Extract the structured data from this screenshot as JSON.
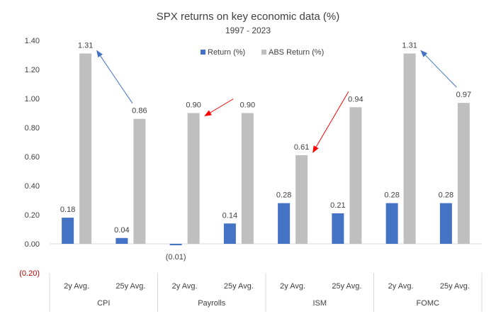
{
  "chart_data": {
    "type": "bar",
    "title": "SPX returns on key economic data (%)",
    "subtitle": "1997 - 2023",
    "xlabel": "",
    "ylabel": "",
    "ylim": [
      -0.2,
      1.4
    ],
    "yticks": [
      {
        "value": 1.4,
        "label": "1.40"
      },
      {
        "value": 1.2,
        "label": "1.20"
      },
      {
        "value": 1.0,
        "label": "1.00"
      },
      {
        "value": 0.8,
        "label": "0.80"
      },
      {
        "value": 0.6,
        "label": "0.60"
      },
      {
        "value": 0.4,
        "label": "0.40"
      },
      {
        "value": 0.2,
        "label": "0.20"
      },
      {
        "value": 0.0,
        "label": "0.00"
      },
      {
        "value": -0.2,
        "label": "(0.20)"
      }
    ],
    "grid": false,
    "legend_position": "top",
    "groups": [
      "CPI",
      "Payrolls",
      "ISM",
      "FOMC"
    ],
    "categories": [
      "2y Avg.",
      "25y Avg.",
      "2y Avg.",
      "25y Avg.",
      "2y Avg.",
      "25y Avg.",
      "2y Avg.",
      "25y Avg."
    ],
    "series": [
      {
        "name": "Return (%)",
        "color": "#4472c4",
        "values": [
          0.18,
          0.04,
          -0.01,
          0.14,
          0.28,
          0.21,
          0.28,
          0.28
        ],
        "labels": [
          "0.18",
          "0.04",
          "(0.01)",
          "0.14",
          "0.28",
          "0.21",
          "0.28",
          "0.28"
        ]
      },
      {
        "name": "ABS Return (%)",
        "color": "#bfbfbf",
        "values": [
          1.31,
          0.86,
          0.9,
          0.9,
          0.61,
          0.94,
          1.31,
          0.97
        ],
        "labels": [
          "1.31",
          "0.86",
          "0.90",
          "0.90",
          "0.61",
          "0.94",
          "1.31",
          "0.97"
        ]
      }
    ],
    "arrows": [
      {
        "from": {
          "category": 1,
          "series": 1
        },
        "to": {
          "category": 0,
          "series": 1
        },
        "color": "#4472c4"
      },
      {
        "from": {
          "category": 3,
          "series": 1
        },
        "to": {
          "category": 2,
          "series": 1
        },
        "color": "#ff0000"
      },
      {
        "from": {
          "category": 5,
          "series": 1
        },
        "to": {
          "category": 4,
          "series": 1
        },
        "color": "#ff0000"
      },
      {
        "from": {
          "category": 7,
          "series": 1
        },
        "to": {
          "category": 6,
          "series": 1
        },
        "color": "#4472c4"
      }
    ],
    "negative_label_color": "#c00000"
  }
}
